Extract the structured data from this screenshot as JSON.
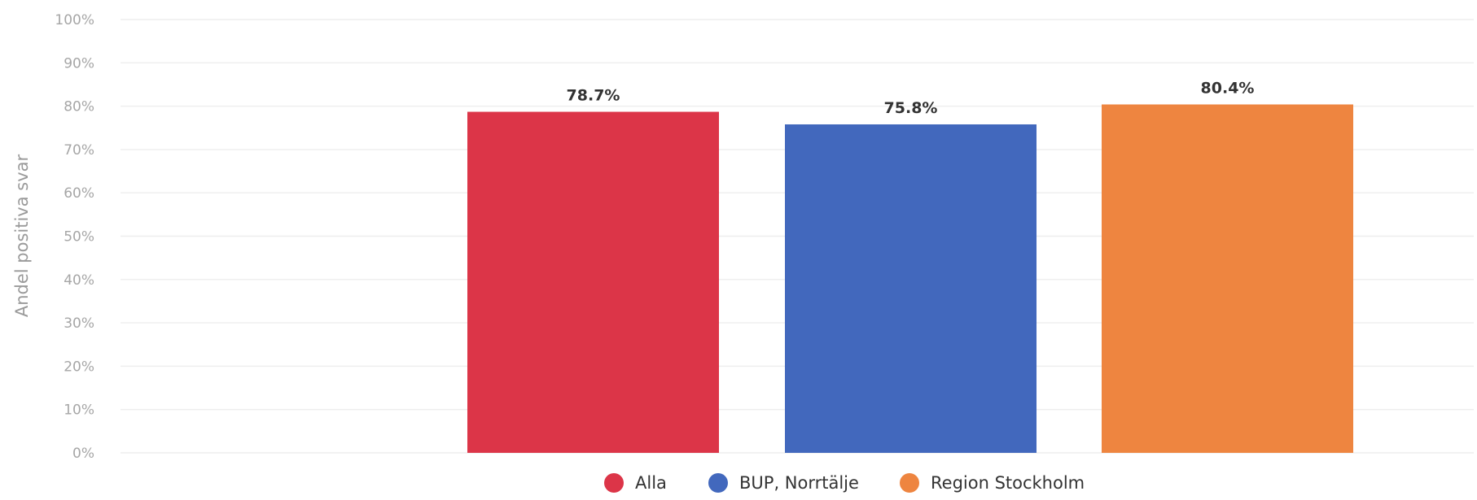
{
  "chart_data": {
    "type": "bar",
    "ylabel": "Andel positiva svar",
    "ylim": [
      0,
      100
    ],
    "y_ticks": [
      "0%",
      "10%",
      "20%",
      "30%",
      "40%",
      "50%",
      "60%",
      "70%",
      "80%",
      "90%",
      "100%"
    ],
    "grid": true,
    "legend_position": "bottom",
    "series": [
      {
        "name": "Alla",
        "value": 78.7,
        "label": "78.7%",
        "color": "#dc3548"
      },
      {
        "name": "BUP, Norrtälje",
        "value": 75.8,
        "label": "75.8%",
        "color": "#4268bd"
      },
      {
        "name": "Region Stockholm",
        "value": 80.4,
        "label": "80.4%",
        "color": "#ee8540"
      }
    ]
  }
}
